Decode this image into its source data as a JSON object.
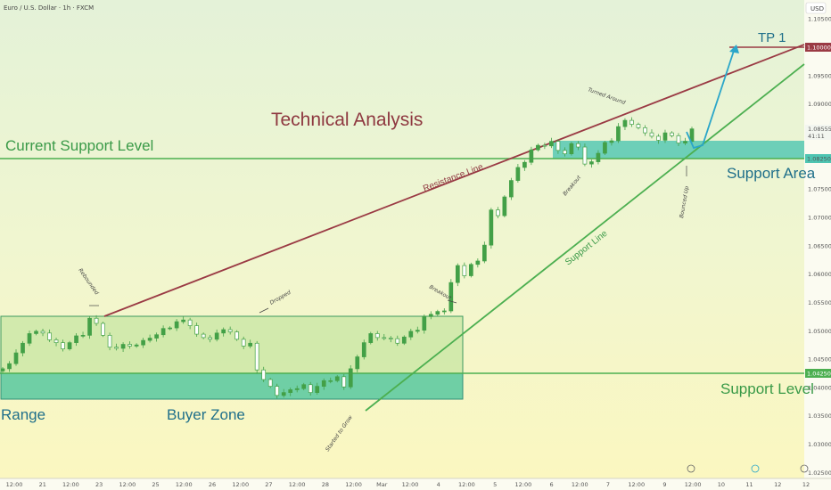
{
  "chart_data": {
    "type": "candlestick",
    "symbol_title": "Euro / U.S. Dollar · 1h · FXCM",
    "currency": "USD",
    "title": "Technical Analysis",
    "y_ticks": [
      "1.10500",
      "1.10000",
      "1.09500",
      "1.09000",
      "1.08500",
      "1.08000",
      "1.07500",
      "1.07000",
      "1.06500",
      "1.06000",
      "1.05500",
      "1.05000",
      "1.04500",
      "1.04000",
      "1.03500",
      "1.03000",
      "1.02500"
    ],
    "x_ticks": [
      "12:00",
      "21",
      "12:00",
      "23",
      "12:00",
      "25",
      "12:00",
      "26",
      "12:00",
      "27",
      "12:00",
      "28",
      "12:00",
      "Mar",
      "12:00",
      "4",
      "12:00",
      "5",
      "12:00",
      "6",
      "12:00",
      "7",
      "12:00",
      "9",
      "12:00",
      "10",
      "11",
      "12",
      "12"
    ],
    "price_labels": {
      "tp": "1.10000",
      "current": "1.08555",
      "countdown": "41:11",
      "support_area": "1.08250",
      "support_level": "1.04250"
    },
    "labels": {
      "current_support_level": "Current Support Level",
      "support_area": "Support Area",
      "support_level": "Support Level",
      "range": "Range",
      "buyer_zone": "Buyer Zone",
      "tp1": "TP 1",
      "resistance_line": "Resistance Line",
      "support_line": "Support Line"
    },
    "annotations": {
      "rebounded": "Rebounded",
      "dropped": "Dropped",
      "breakout1": "Breakout",
      "breakout2": "Breakout",
      "turned_around": "Turned Around",
      "bounced_up": "Bounced Up",
      "started_to_grow": "Started to Grow"
    },
    "candles_close": [
      1.0433,
      1.0442,
      1.0461,
      1.0478,
      1.0495,
      1.0499,
      1.0496,
      1.0484,
      1.0479,
      1.0468,
      1.0479,
      1.0491,
      1.0492,
      1.0522,
      1.0513,
      1.0492,
      1.0471,
      1.0469,
      1.0476,
      1.0473,
      1.0475,
      1.0483,
      1.0487,
      1.0493,
      1.0504,
      1.0505,
      1.0516,
      1.0519,
      1.0509,
      1.0494,
      1.0488,
      1.0485,
      1.0496,
      1.0502,
      1.0498,
      1.0485,
      1.0473,
      1.0478,
      1.0431,
      1.0414,
      1.0402,
      1.0386,
      1.0391,
      1.0396,
      1.0398,
      1.0405,
      1.0391,
      1.0402,
      1.0412,
      1.0412,
      1.0419,
      1.0401,
      1.0433,
      1.0454,
      1.0479,
      1.0495,
      1.0488,
      1.0487,
      1.0486,
      1.0478,
      1.0489,
      1.0499,
      1.0501,
      1.0525,
      1.0529,
      1.0534,
      1.0535,
      1.0585,
      1.0615,
      1.0597,
      1.0617,
      1.0623,
      1.0651,
      1.0713,
      1.0703,
      1.0736,
      1.0765,
      1.0788,
      1.0797,
      1.0819,
      1.0827,
      1.0826,
      1.0834,
      1.0818,
      1.0812,
      1.083,
      1.0824,
      1.0794,
      1.0798,
      1.0813,
      1.0832,
      1.0835,
      1.086,
      1.0871,
      1.0864,
      1.0858,
      1.0849,
      1.0843,
      1.0836,
      1.0849,
      1.0844,
      1.0831,
      1.0834,
      1.0856
    ],
    "trade_plan": {
      "support_area": [
        1.0825,
        1.0845
      ],
      "buyer_zone": [
        1.038,
        1.0425
      ],
      "range": [
        1.038,
        1.0525
      ],
      "current_support_level": 1.0825,
      "support_level": 1.0425,
      "tp": 1.1
    },
    "resistance_line": [
      [
        1.0525,
        "Feb 23 12:00"
      ],
      [
        1.1,
        "Mar 12"
      ]
    ],
    "support_line": [
      [
        1.0357,
        "Feb 28"
      ],
      [
        1.097,
        "Mar 12"
      ]
    ]
  },
  "colors": {
    "bg": "#fdf8c8",
    "green": "#4caf50",
    "teal_zone": "#62d3b0",
    "resistance": "#9a3a44",
    "projection": "#2aa6c9",
    "candle": "#43a047"
  }
}
